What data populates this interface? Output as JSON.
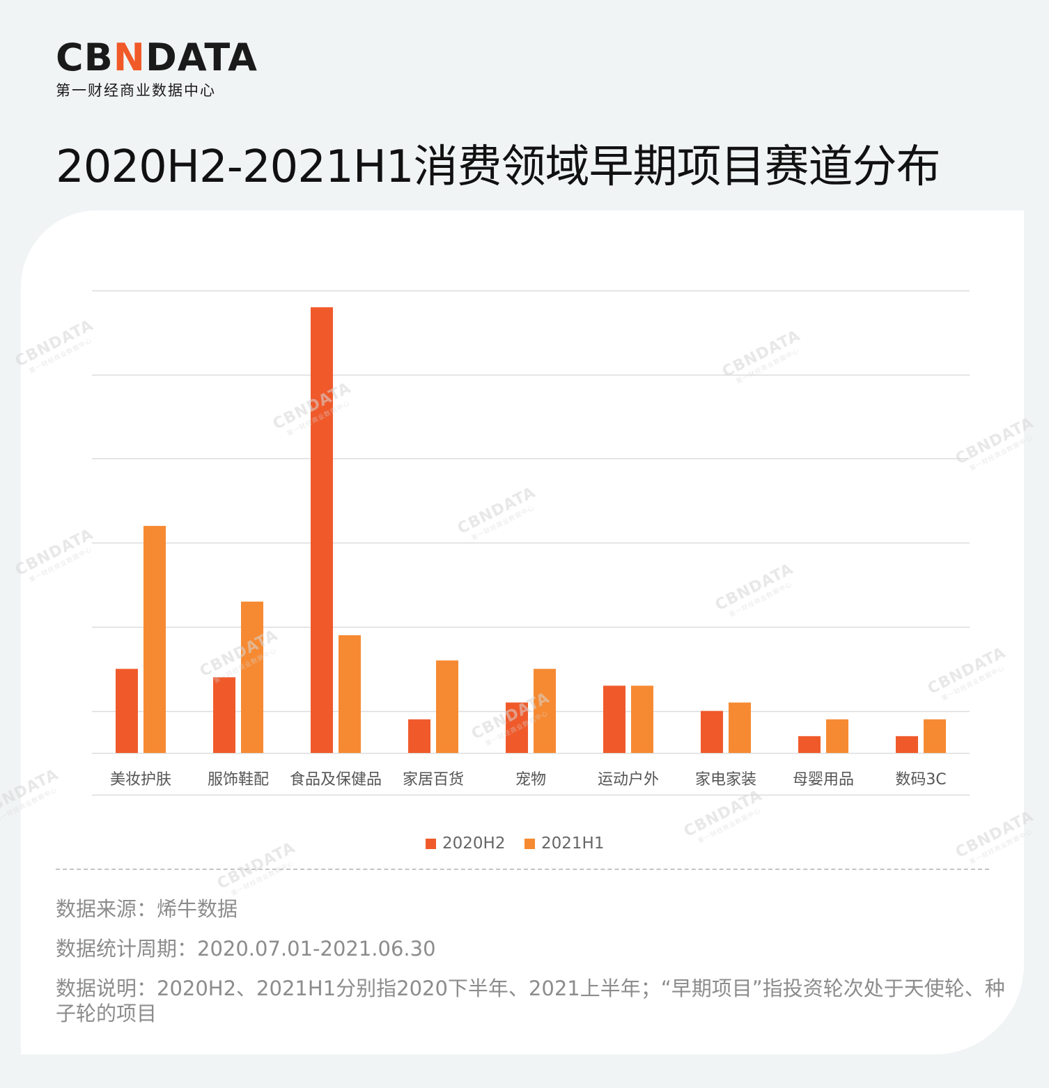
{
  "brand": {
    "logo_left": "CB",
    "logo_mid": "N",
    "logo_right": "DATA",
    "subtitle": "第一财经商业数据中心",
    "accent_color": "#f05a28"
  },
  "title": "2020H2-2021H1消费领域早期项目赛道分布",
  "chart_data": {
    "type": "bar",
    "title": "2020H2-2021H1消费领域早期项目赛道分布",
    "categories": [
      "美妆护肤",
      "服饰鞋配",
      "食品及保健品",
      "家居百货",
      "宠物",
      "运动户外",
      "家电家装",
      "母婴用品",
      "数码3C"
    ],
    "series": [
      {
        "name": "2020H2",
        "color": "#f05a2b",
        "values": [
          10,
          9,
          53,
          4,
          6,
          8,
          5,
          2,
          2
        ]
      },
      {
        "name": "2021H1",
        "color": "#f68a32",
        "values": [
          27,
          18,
          14,
          11,
          10,
          8,
          6,
          4,
          4
        ]
      }
    ],
    "ylim": [
      0,
      55
    ],
    "y_gridlines": [
      0,
      5,
      15,
      25,
      35,
      45,
      55
    ],
    "y_tick_labels_visible": false,
    "grid": true,
    "legend_position": "bottom-center",
    "xlabel": "",
    "ylabel": ""
  },
  "footer": {
    "source": "数据来源：烯牛数据",
    "period": "数据统计周期：2020.07.01-2021.06.30",
    "description": "数据说明：2020H2、2021H1分别指2020下半年、2021上半年；“早期项目”指投资轮次处于天使轮、种子轮的项目"
  },
  "watermark": {
    "word": "CBNDATA",
    "sub": "第一财经商业数据中心"
  }
}
